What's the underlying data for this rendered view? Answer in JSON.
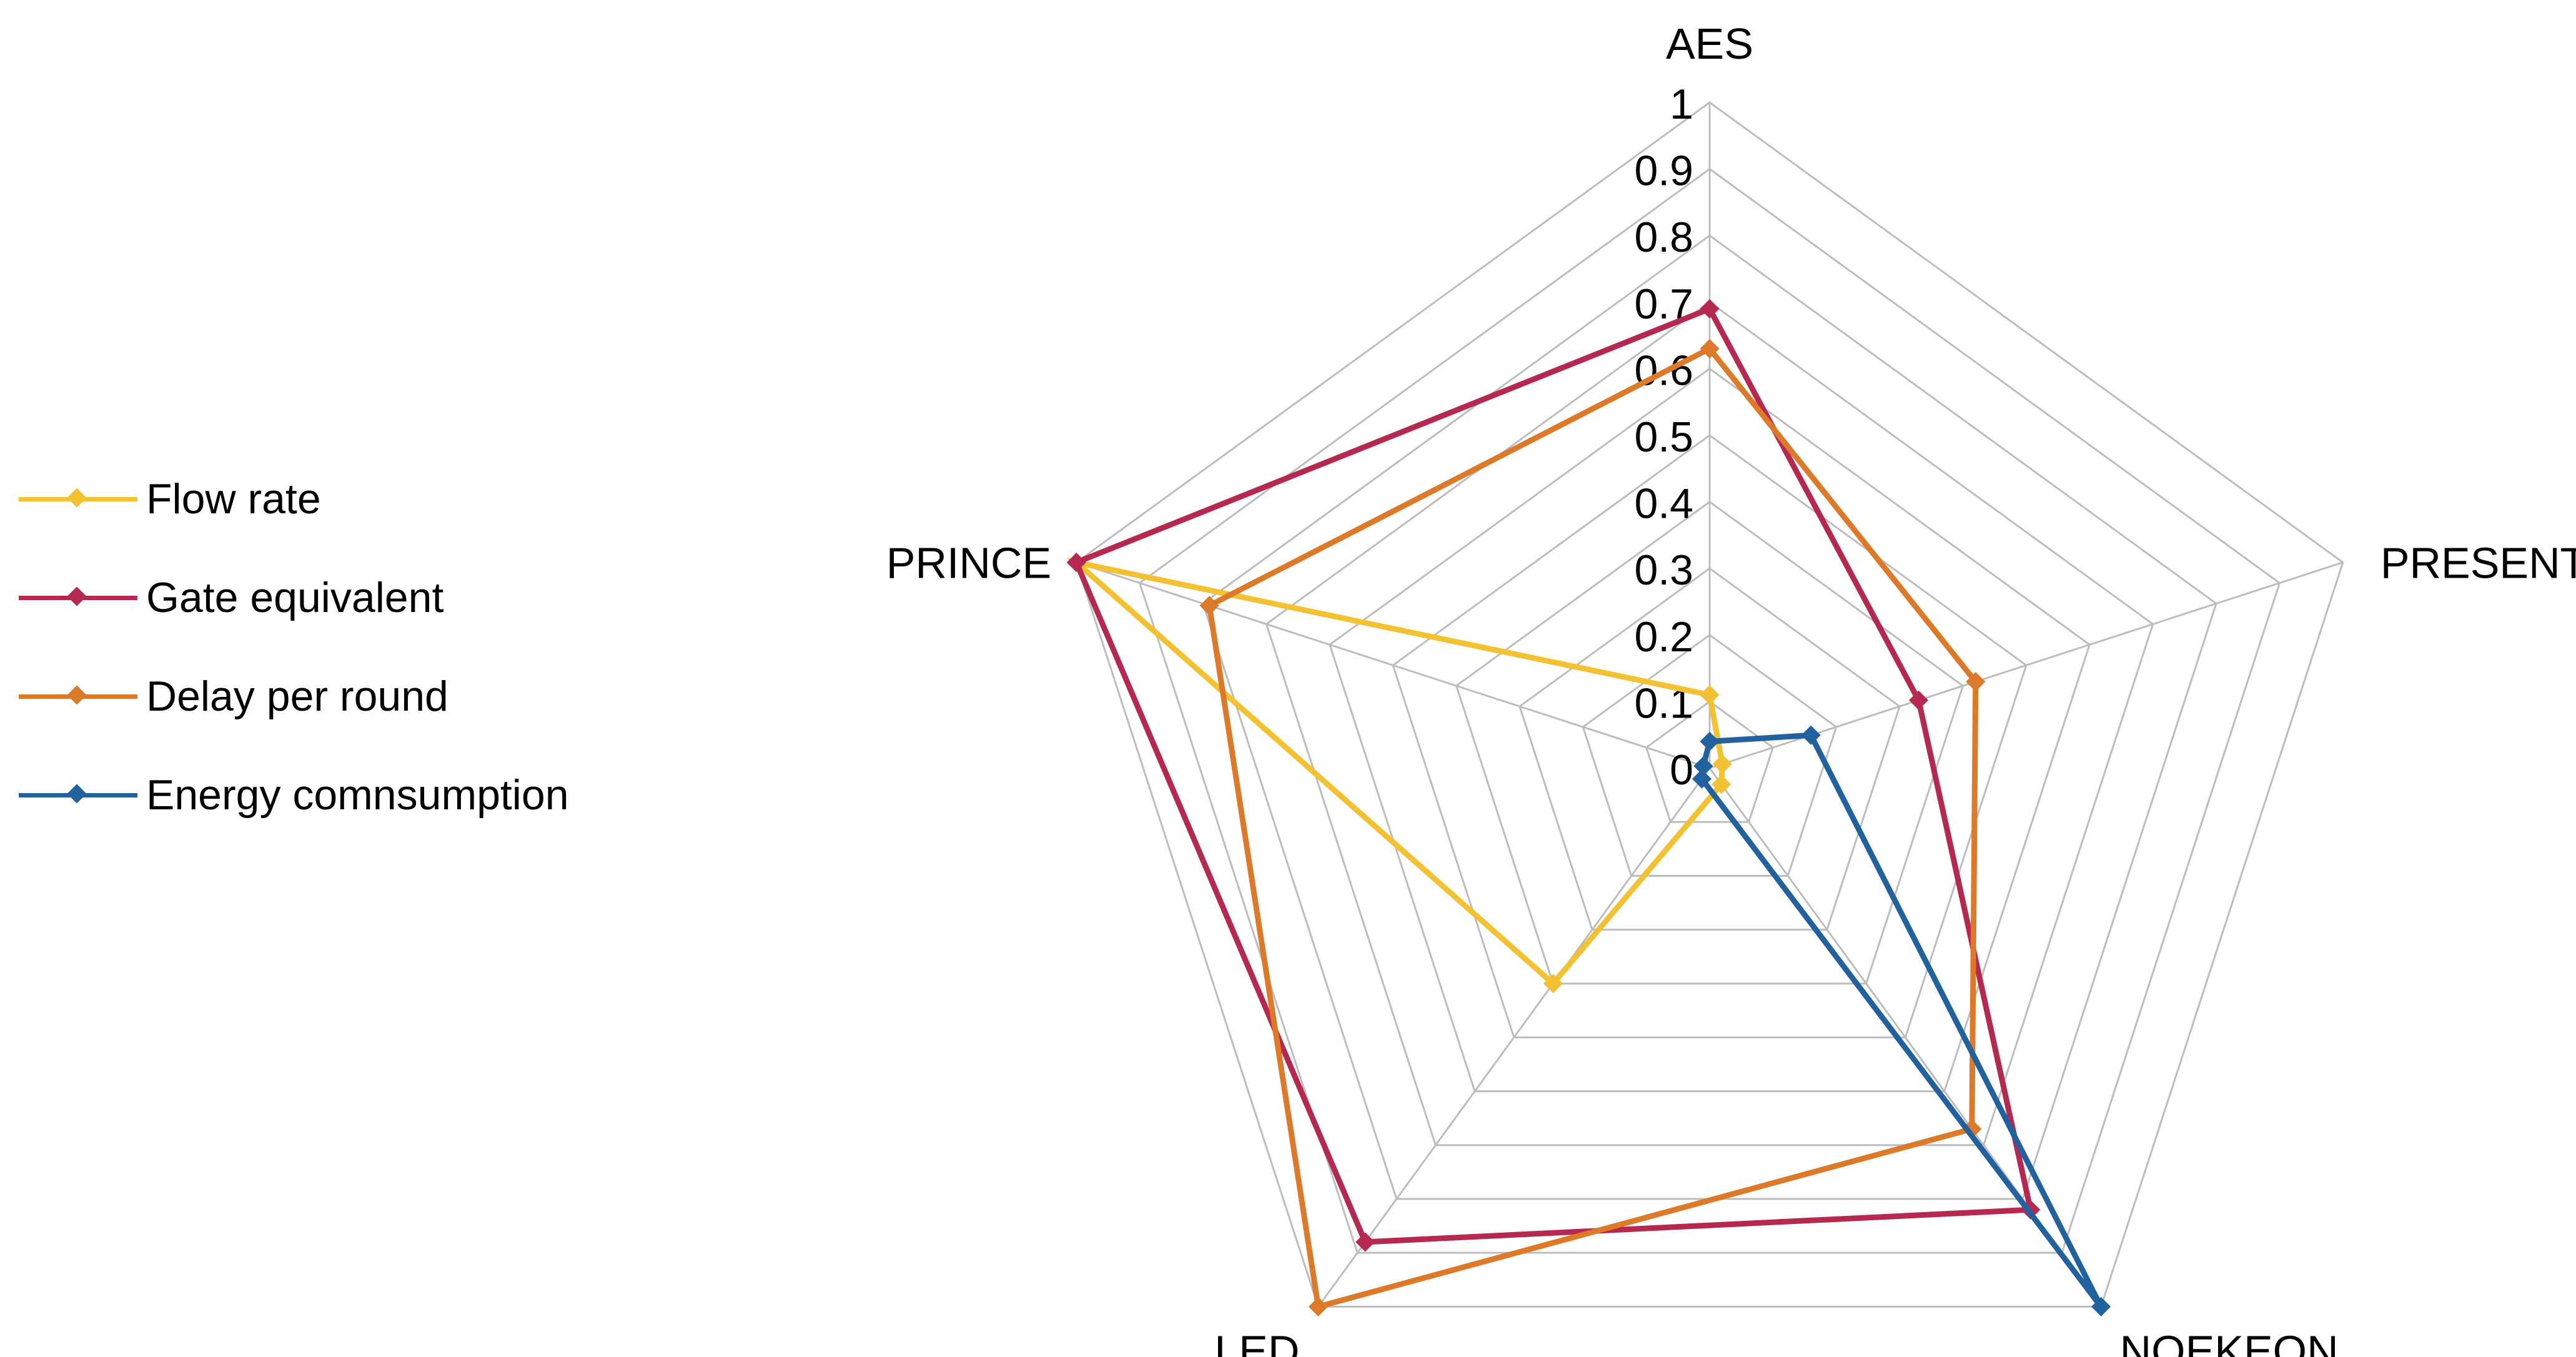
{
  "chart_data": {
    "type": "radar",
    "axes": [
      "AES",
      "PRESENT",
      "NOEKEON",
      "LED",
      "PRINCE"
    ],
    "r_range": [
      0,
      1
    ],
    "ticks": [
      "0",
      "0.1",
      "0.2",
      "0.3",
      "0.4",
      "0.5",
      "0.6",
      "0.7",
      "0.8",
      "0.9",
      "1"
    ],
    "grid": true,
    "legend_position": "left",
    "series": [
      {
        "name": "Flow rate",
        "color": "#F2C233",
        "values": [
          0.11,
          0.02,
          0.03,
          0.4,
          1.0
        ]
      },
      {
        "name": "Gate equivalent",
        "color": "#B5284F",
        "values": [
          0.69,
          0.33,
          0.82,
          0.88,
          1.0
        ]
      },
      {
        "name": "Delay per round",
        "color": "#DC7A2A",
        "values": [
          0.63,
          0.42,
          0.67,
          1.0,
          0.79
        ]
      },
      {
        "name": "Energy comnsumption",
        "color": "#21619E",
        "values": [
          0.04,
          0.16,
          1.0,
          0.02,
          0.01
        ]
      }
    ]
  }
}
